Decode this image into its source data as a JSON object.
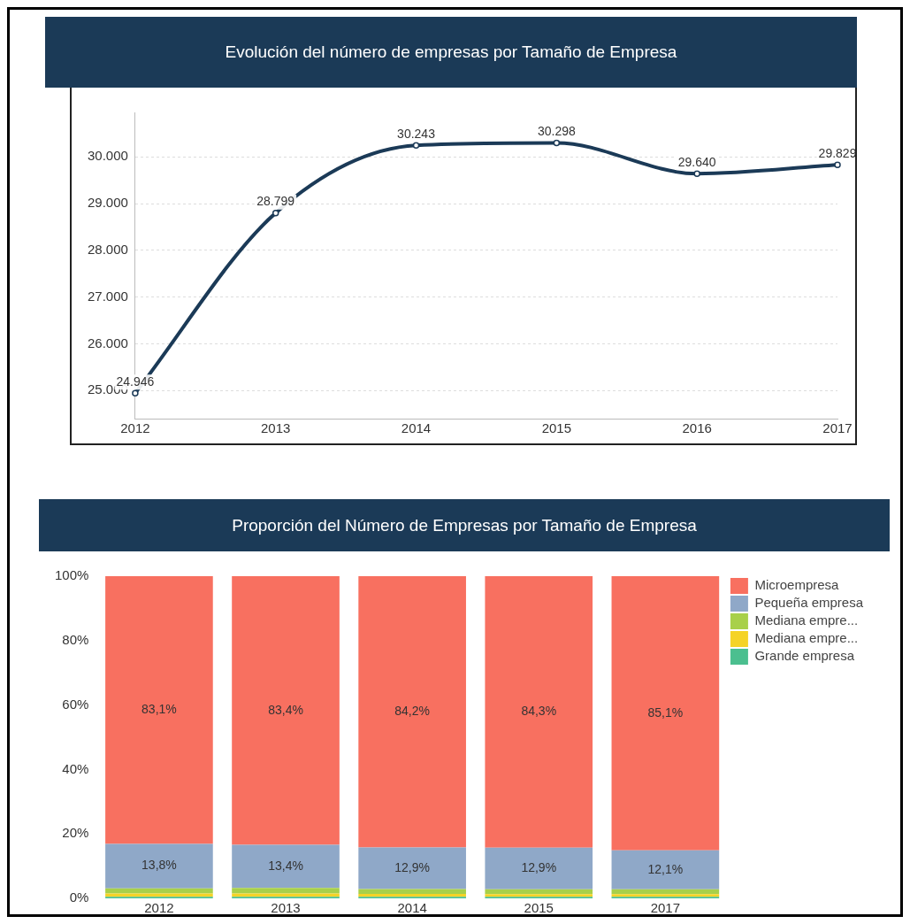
{
  "chart_data": [
    {
      "type": "line",
      "title": "Evolución del número de empresas por Tamaño de Empresa",
      "categories": [
        "2012",
        "2013",
        "2014",
        "2015",
        "2016",
        "2017"
      ],
      "series": [
        {
          "color": "#1b3a57",
          "values": [
            24946,
            28799,
            30243,
            30298,
            29640,
            29829
          ],
          "value_labels": [
            "24.946",
            "28.799",
            "30.243",
            "30.298",
            "29.640",
            "29.829"
          ]
        }
      ],
      "ylim": [
        24400,
        30950
      ],
      "yticks": [
        {
          "value": 25000,
          "label": "25.000"
        },
        {
          "value": 26000,
          "label": "26.000"
        },
        {
          "value": 27000,
          "label": "27.000"
        },
        {
          "value": 28000,
          "label": "28.000"
        },
        {
          "value": 29000,
          "label": "29.000"
        },
        {
          "value": 30000,
          "label": "30.000"
        }
      ],
      "grid": "y",
      "legend": false,
      "marker": "circle",
      "line_style": "solid"
    },
    {
      "type": "bar",
      "stacked": true,
      "title": "Proporción del Número de Empresas por Tamaño de Empresa",
      "categories": [
        "2012",
        "2013",
        "2014",
        "2015",
        "2017"
      ],
      "series": [
        {
          "name": "Grande empresa",
          "color": "#4bbf8f",
          "values": [
            0.5,
            0.5,
            0.5,
            0.5,
            0.5
          ]
        },
        {
          "name": "Mediana empre...",
          "color": "#f5d326",
          "values": [
            1.0,
            1.0,
            0.9,
            0.8,
            0.8
          ]
        },
        {
          "name": "Mediana empre...",
          "color": "#a8d04a",
          "values": [
            1.6,
            1.7,
            1.5,
            1.5,
            1.5
          ]
        },
        {
          "name": "Pequeña empresa",
          "color": "#8fa8c8",
          "values": [
            13.8,
            13.4,
            12.9,
            12.9,
            12.1
          ],
          "value_labels": [
            "13,8%",
            "13,4%",
            "12,9%",
            "12,9%",
            "12,1%"
          ]
        },
        {
          "name": "Microempresa",
          "color": "#f87060",
          "values": [
            83.1,
            83.4,
            84.2,
            84.3,
            85.1
          ],
          "value_labels": [
            "83,1%",
            "83,4%",
            "84,2%",
            "84,3%",
            "85,1%"
          ]
        }
      ],
      "ylim": [
        0,
        100
      ],
      "yticks": [
        {
          "value": 0,
          "label": "0%"
        },
        {
          "value": 20,
          "label": "20%"
        },
        {
          "value": 40,
          "label": "40%"
        },
        {
          "value": 60,
          "label": "60%"
        },
        {
          "value": 80,
          "label": "80%"
        },
        {
          "value": 100,
          "label": "100%"
        }
      ],
      "grid": false,
      "legend": "top right"
    }
  ]
}
